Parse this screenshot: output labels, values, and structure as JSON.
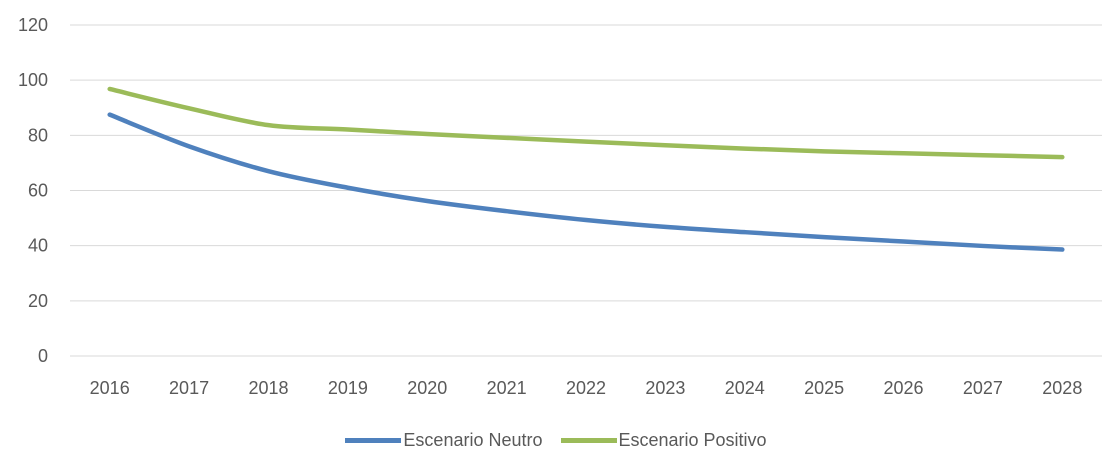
{
  "chart_data": {
    "type": "line",
    "x": [
      "2016",
      "2017",
      "2018",
      "2019",
      "2020",
      "2021",
      "2022",
      "2023",
      "2024",
      "2025",
      "2026",
      "2027",
      "2028"
    ],
    "series": [
      {
        "name": "Escenario Neutro",
        "color": "#4F81BD",
        "values": [
          87.5,
          76,
          67,
          61,
          56.2,
          52.5,
          49.3,
          46.8,
          44.9,
          43.1,
          41.5,
          39.9,
          38.6
        ]
      },
      {
        "name": "Escenario Positivo",
        "color": "#9BBB59",
        "values": [
          96.8,
          89.8,
          83.7,
          82.1,
          80.5,
          79.1,
          77.7,
          76.4,
          75.2,
          74.2,
          73.5,
          72.8,
          72.1
        ]
      }
    ],
    "ylim": [
      0,
      120
    ],
    "yticks": [
      "0",
      "20",
      "40",
      "60",
      "80",
      "100",
      "120"
    ],
    "grid": true,
    "legend_position": "bottom",
    "title": "",
    "xlabel": "",
    "ylabel": ""
  }
}
